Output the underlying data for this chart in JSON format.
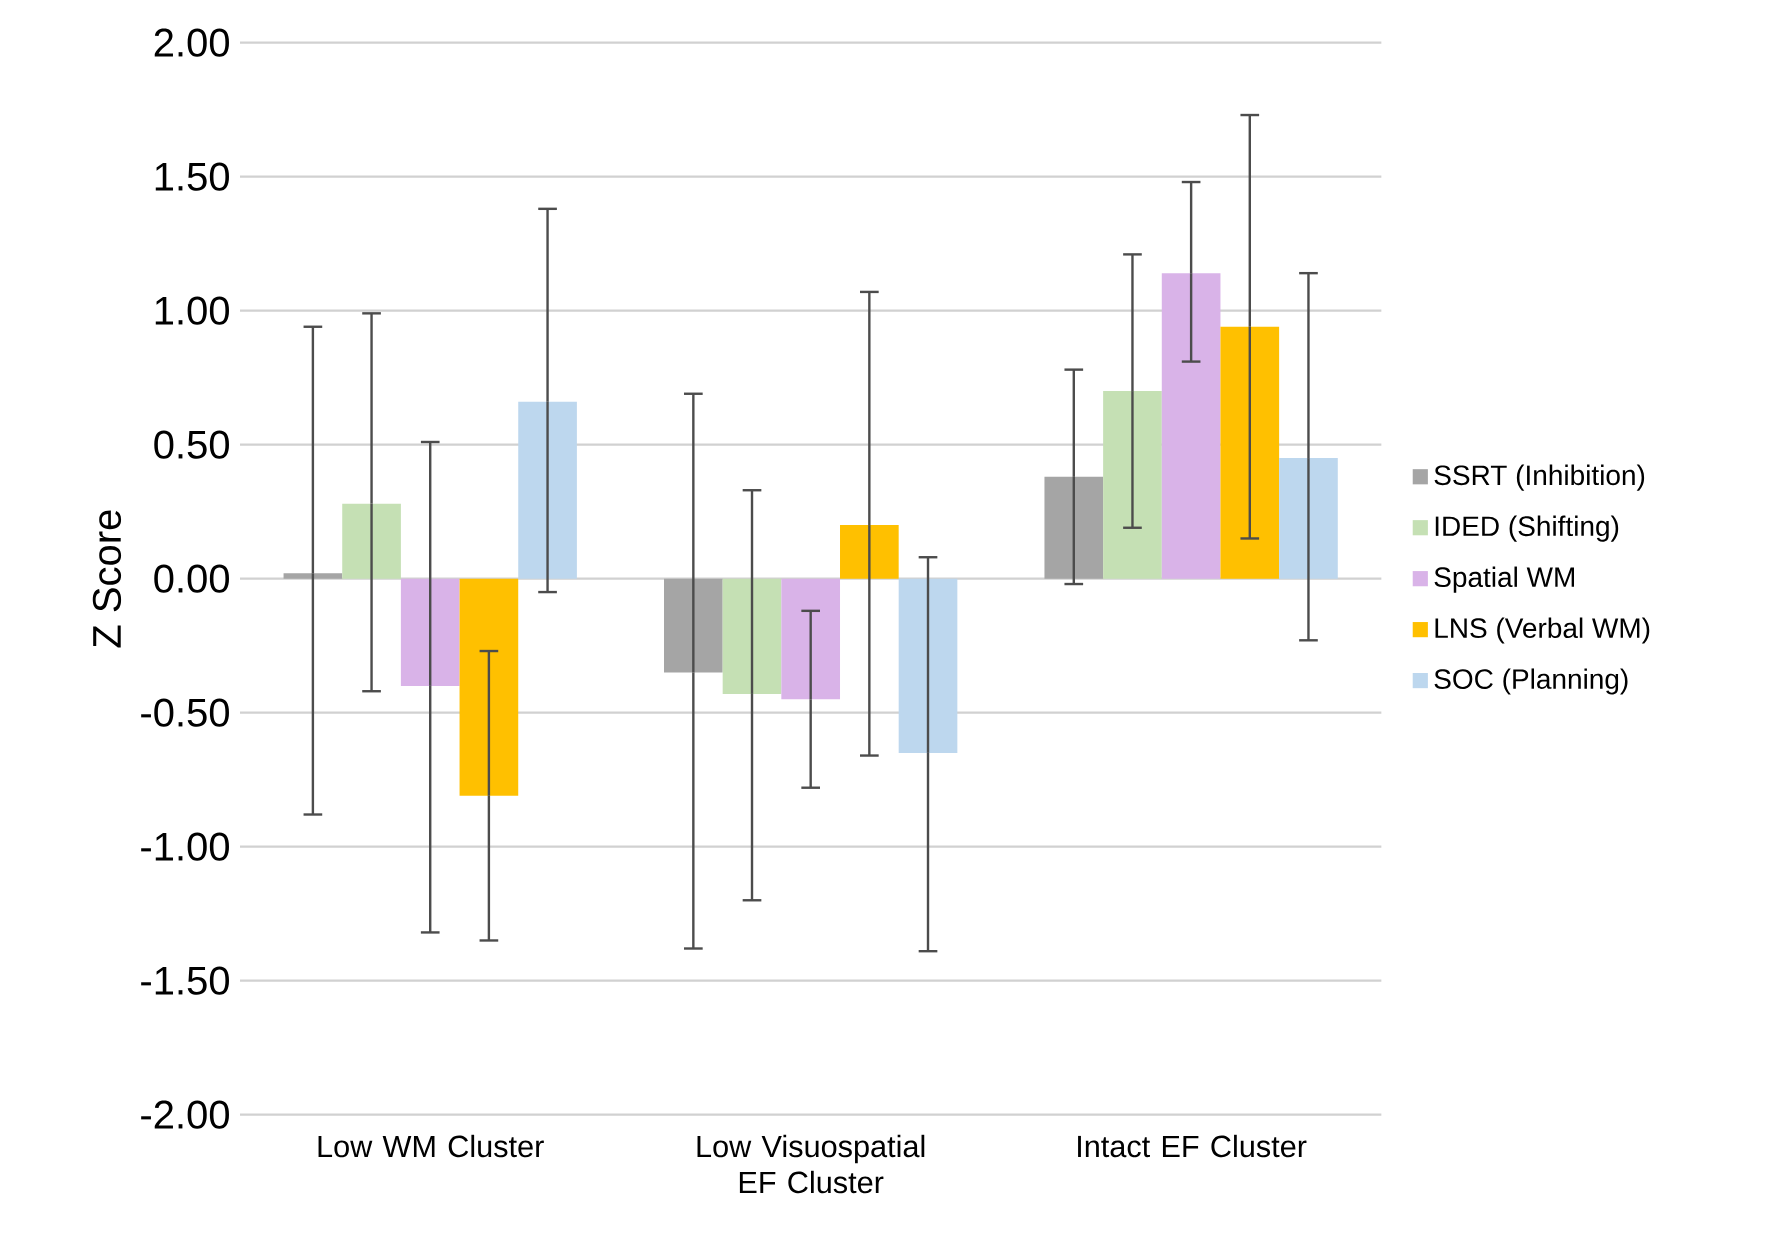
{
  "chart_data": {
    "type": "bar",
    "ylabel": "Z Score",
    "categories": [
      "Low WM Cluster",
      "Low Visuospatial EF Cluster",
      "Intact EF Cluster"
    ],
    "series": [
      {
        "name": "SSRT (Inhibition)",
        "color": "#a5a5a5",
        "values": [
          0.02,
          -0.35,
          0.38
        ],
        "errors": [
          [
            -0.88,
            0.94
          ],
          [
            -1.38,
            0.69
          ],
          [
            -0.02,
            0.78
          ]
        ]
      },
      {
        "name": "IDED (Shifting)",
        "color": "#c5e0b4",
        "values": [
          0.28,
          -0.43,
          0.7
        ],
        "errors": [
          [
            -0.42,
            0.99
          ],
          [
            -1.2,
            0.33
          ],
          [
            0.19,
            1.21
          ]
        ]
      },
      {
        "name": "Spatial WM",
        "color": "#d9b3e8",
        "values": [
          -0.4,
          -0.45,
          1.14
        ],
        "errors": [
          [
            -1.32,
            0.51
          ],
          [
            -0.78,
            -0.12
          ],
          [
            0.81,
            1.48
          ]
        ]
      },
      {
        "name": "LNS (Verbal WM)",
        "color": "#ffc000",
        "values": [
          -0.81,
          0.2,
          0.94
        ],
        "errors": [
          [
            -1.35,
            -0.27
          ],
          [
            -0.66,
            1.07
          ],
          [
            0.15,
            1.73
          ]
        ]
      },
      {
        "name": "SOC (Planning)",
        "color": "#bdd7ee",
        "values": [
          0.66,
          -0.65,
          0.45
        ],
        "errors": [
          [
            -0.05,
            1.38
          ],
          [
            -1.39,
            0.08
          ],
          [
            -0.23,
            1.14
          ]
        ]
      }
    ],
    "ylim": [
      -2,
      2
    ],
    "yticks": [
      {
        "value": -2,
        "label": "-2.00"
      },
      {
        "value": -1.5,
        "label": "-1.50"
      },
      {
        "value": -1,
        "label": "-1.00"
      },
      {
        "value": -0.5,
        "label": "-0.50"
      },
      {
        "value": 0,
        "label": "0.00"
      },
      {
        "value": 0.5,
        "label": "0.50"
      },
      {
        "value": 1,
        "label": "1.00"
      },
      {
        "value": 1.5,
        "label": "1.50"
      },
      {
        "value": 2,
        "label": "2.00"
      }
    ],
    "grid": "y",
    "legend": "right"
  }
}
